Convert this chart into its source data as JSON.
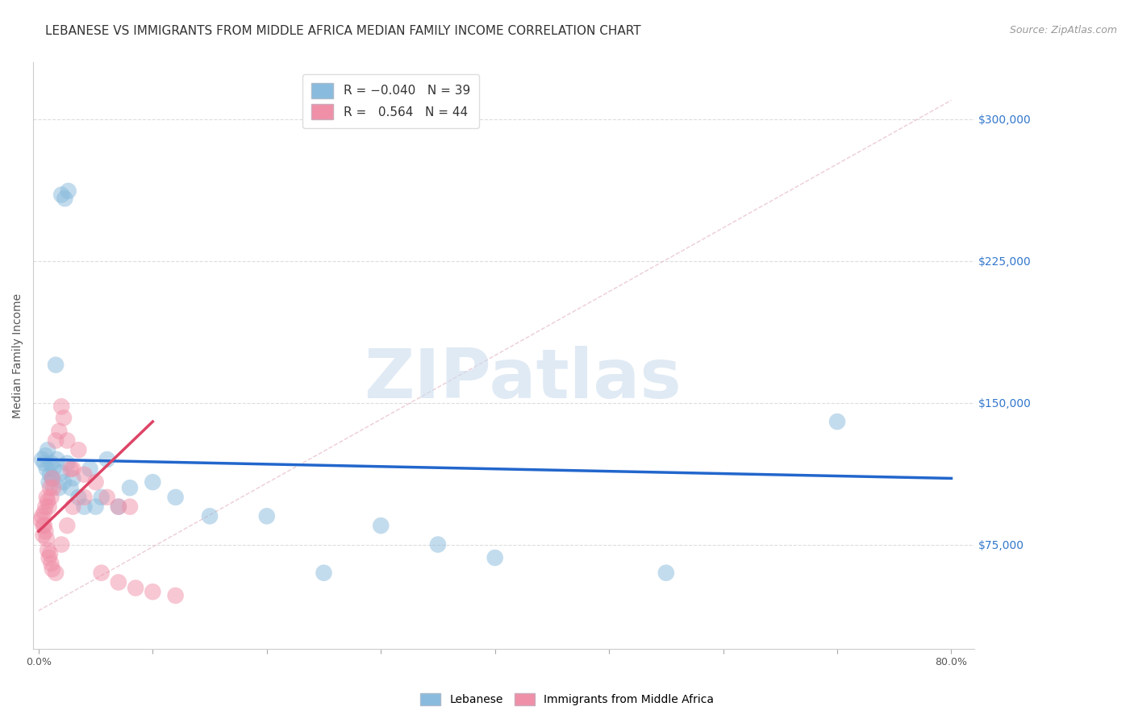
{
  "title": "LEBANESE VS IMMIGRANTS FROM MIDDLE AFRICA MEDIAN FAMILY INCOME CORRELATION CHART",
  "source": "Source: ZipAtlas.com",
  "ylabel": "Median Family Income",
  "xlabel_ticks": [
    "0.0%",
    "",
    "",
    "",
    "",
    "",
    "",
    "",
    "80.0%"
  ],
  "xlabel_vals": [
    0,
    10,
    20,
    30,
    40,
    50,
    60,
    70,
    80
  ],
  "ytick_vals": [
    75000,
    150000,
    225000,
    300000
  ],
  "ytick_labels": [
    "$75,000",
    "$150,000",
    "$225,000",
    "$300,000"
  ],
  "ylim": [
    20000,
    330000
  ],
  "xlim": [
    -0.5,
    82
  ],
  "blue_color": "#88bbdd",
  "pink_color": "#f090a8",
  "blue_line_color": "#2266cc",
  "pink_line_color": "#dd4466",
  "diag_line_color": "#ddbbcc",
  "watermark_color": "#ccdded",
  "watermark": "ZIPatlas",
  "blue_scatter_x": [
    0.3,
    0.5,
    0.6,
    0.7,
    0.8,
    0.9,
    1.0,
    1.1,
    1.2,
    1.3,
    1.5,
    1.6,
    1.8,
    2.0,
    2.2,
    2.5,
    2.8,
    3.0,
    3.5,
    4.0,
    4.5,
    5.0,
    5.5,
    6.0,
    7.0,
    8.0,
    10.0,
    12.0,
    15.0,
    20.0,
    25.0,
    30.0,
    35.0,
    40.0,
    55.0,
    70.0,
    2.0,
    2.3,
    2.6
  ],
  "blue_scatter_y": [
    120000,
    118000,
    122000,
    115000,
    125000,
    108000,
    112000,
    118000,
    110000,
    115000,
    170000,
    120000,
    105000,
    113000,
    108000,
    118000,
    105000,
    110000,
    100000,
    95000,
    115000,
    95000,
    100000,
    120000,
    95000,
    105000,
    108000,
    100000,
    90000,
    90000,
    60000,
    85000,
    75000,
    68000,
    60000,
    140000,
    260000,
    258000,
    262000
  ],
  "pink_scatter_x": [
    0.2,
    0.3,
    0.4,
    0.5,
    0.6,
    0.7,
    0.8,
    0.9,
    1.0,
    1.1,
    1.2,
    1.3,
    1.5,
    1.8,
    2.0,
    2.2,
    2.5,
    3.0,
    3.5,
    4.0,
    5.0,
    6.0,
    7.0,
    8.0,
    0.4,
    0.5,
    0.6,
    0.7,
    0.8,
    0.9,
    1.0,
    1.1,
    1.2,
    1.5,
    2.0,
    2.5,
    3.0,
    4.0,
    5.5,
    7.0,
    8.5,
    10.0,
    12.0,
    2.8
  ],
  "pink_scatter_y": [
    88000,
    90000,
    85000,
    92000,
    95000,
    100000,
    98000,
    95000,
    105000,
    100000,
    110000,
    105000,
    130000,
    135000,
    148000,
    142000,
    130000,
    115000,
    125000,
    112000,
    108000,
    100000,
    95000,
    95000,
    80000,
    85000,
    82000,
    78000,
    72000,
    68000,
    70000,
    65000,
    62000,
    60000,
    75000,
    85000,
    95000,
    100000,
    60000,
    55000,
    52000,
    50000,
    48000,
    115000
  ],
  "blue_trend_x": [
    0,
    80
  ],
  "blue_trend_y": [
    120000,
    110000
  ],
  "pink_trend_x": [
    0,
    10
  ],
  "pink_trend_y": [
    82000,
    140000
  ],
  "background_color": "#ffffff",
  "grid_color": "#dddddd",
  "title_color": "#333333",
  "ylabel_color": "#555555",
  "right_label_color": "#3377cc",
  "title_fontsize": 11,
  "source_fontsize": 9,
  "axis_fontsize": 9
}
